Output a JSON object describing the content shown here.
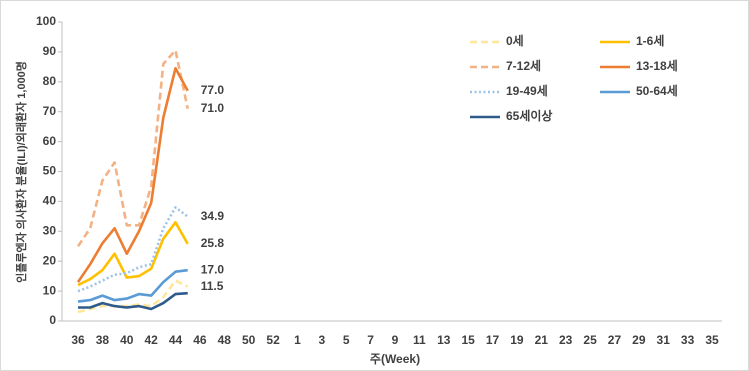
{
  "chart_data": {
    "type": "line",
    "y_axis_label": "인플루엔자 의사환자 분율(ILI)/외래환자 1,000명",
    "x_axis_label": "주(Week)",
    "categories": [
      "36",
      null,
      "38",
      null,
      "40",
      null,
      "42",
      null,
      "44",
      null,
      "46",
      null,
      "48",
      null,
      "50",
      null,
      "52",
      null,
      "1",
      null,
      "3",
      null,
      "5",
      null,
      "7",
      null,
      "9",
      null,
      "11",
      null,
      "13",
      null,
      "15",
      null,
      "17",
      null,
      "19",
      null,
      "21",
      null,
      "23",
      null,
      "25",
      null,
      "27",
      null,
      "29",
      null,
      "31",
      null,
      "33",
      null,
      "35"
    ],
    "ylim": [
      0,
      100
    ],
    "yticks": [
      0,
      10,
      20,
      30,
      40,
      50,
      60,
      70,
      80,
      90,
      100
    ],
    "legend": "upper right",
    "series": [
      {
        "name": "0세",
        "color": "#ffe699",
        "dash": "dashed",
        "values": [
          3,
          4,
          5,
          5,
          5,
          5.5,
          5,
          8,
          13.5,
          11.5,
          null,
          null,
          null,
          null,
          null,
          null,
          null,
          null,
          null,
          null,
          null,
          null,
          null,
          null,
          null,
          null,
          null,
          null,
          null,
          null,
          null,
          null,
          null,
          null,
          null,
          null,
          null,
          null,
          null,
          null,
          null,
          null,
          null,
          null,
          null,
          null,
          null,
          null,
          null,
          null,
          null,
          null,
          null
        ],
        "value_labels": [
          null,
          null,
          null,
          null,
          null,
          null,
          null,
          null,
          null,
          "11.5",
          null,
          null,
          null,
          null,
          null,
          null,
          null,
          null,
          null,
          null,
          null,
          null,
          null,
          null,
          null,
          null,
          null,
          null,
          null,
          null,
          null,
          null,
          null,
          null,
          null,
          null,
          null,
          null,
          null,
          null,
          null,
          null,
          null,
          null,
          null,
          null,
          null,
          null,
          null,
          null,
          null,
          null,
          null
        ]
      },
      {
        "name": "1-6세",
        "color": "#ffc000",
        "dash": "solid",
        "values": [
          12,
          14,
          17,
          22.5,
          14.5,
          15,
          17.5,
          27.5,
          33,
          25.8,
          null,
          null,
          null,
          null,
          null,
          null,
          null,
          null,
          null,
          null,
          null,
          null,
          null,
          null,
          null,
          null,
          null,
          null,
          null,
          null,
          null,
          null,
          null,
          null,
          null,
          null,
          null,
          null,
          null,
          null,
          null,
          null,
          null,
          null,
          null,
          null,
          null,
          null,
          null,
          null,
          null,
          null,
          null
        ],
        "value_labels": [
          null,
          null,
          null,
          null,
          null,
          null,
          null,
          null,
          null,
          "25.8",
          null,
          null,
          null,
          null,
          null,
          null,
          null,
          null,
          null,
          null,
          null,
          null,
          null,
          null,
          null,
          null,
          null,
          null,
          null,
          null,
          null,
          null,
          null,
          null,
          null,
          null,
          null,
          null,
          null,
          null,
          null,
          null,
          null,
          null,
          null,
          null,
          null,
          null,
          null,
          null,
          null,
          null,
          null
        ]
      },
      {
        "name": "7-12세",
        "color": "#f4b183",
        "dash": "dashed",
        "values": [
          25,
          31,
          47,
          53,
          32,
          32,
          45,
          86,
          90.5,
          71,
          null,
          null,
          null,
          null,
          null,
          null,
          null,
          null,
          null,
          null,
          null,
          null,
          null,
          null,
          null,
          null,
          null,
          null,
          null,
          null,
          null,
          null,
          null,
          null,
          null,
          null,
          null,
          null,
          null,
          null,
          null,
          null,
          null,
          null,
          null,
          null,
          null,
          null,
          null,
          null,
          null,
          null,
          null
        ],
        "value_labels": [
          null,
          null,
          null,
          null,
          null,
          null,
          null,
          null,
          null,
          "71.0",
          null,
          null,
          null,
          null,
          null,
          null,
          null,
          null,
          null,
          null,
          null,
          null,
          null,
          null,
          null,
          null,
          null,
          null,
          null,
          null,
          null,
          null,
          null,
          null,
          null,
          null,
          null,
          null,
          null,
          null,
          null,
          null,
          null,
          null,
          null,
          null,
          null,
          null,
          null,
          null,
          null,
          null,
          null
        ]
      },
      {
        "name": "13-18세",
        "color": "#ed7d31",
        "dash": "solid",
        "values": [
          13,
          19,
          26,
          31,
          22.5,
          30,
          39.5,
          68,
          84.5,
          77,
          null,
          null,
          null,
          null,
          null,
          null,
          null,
          null,
          null,
          null,
          null,
          null,
          null,
          null,
          null,
          null,
          null,
          null,
          null,
          null,
          null,
          null,
          null,
          null,
          null,
          null,
          null,
          null,
          null,
          null,
          null,
          null,
          null,
          null,
          null,
          null,
          null,
          null,
          null,
          null,
          null,
          null,
          null
        ],
        "value_labels": [
          null,
          null,
          null,
          null,
          null,
          null,
          null,
          null,
          null,
          "77.0",
          null,
          null,
          null,
          null,
          null,
          null,
          null,
          null,
          null,
          null,
          null,
          null,
          null,
          null,
          null,
          null,
          null,
          null,
          null,
          null,
          null,
          null,
          null,
          null,
          null,
          null,
          null,
          null,
          null,
          null,
          null,
          null,
          null,
          null,
          null,
          null,
          null,
          null,
          null,
          null,
          null,
          null,
          null
        ]
      },
      {
        "name": "19-49세",
        "color": "#9dc3e6",
        "dash": "dotted",
        "values": [
          10,
          11.5,
          13.5,
          15.5,
          16,
          18,
          19,
          31,
          38,
          34.9,
          null,
          null,
          null,
          null,
          null,
          null,
          null,
          null,
          null,
          null,
          null,
          null,
          null,
          null,
          null,
          null,
          null,
          null,
          null,
          null,
          null,
          null,
          null,
          null,
          null,
          null,
          null,
          null,
          null,
          null,
          null,
          null,
          null,
          null,
          null,
          null,
          null,
          null,
          null,
          null,
          null,
          null,
          null
        ],
        "value_labels": [
          null,
          null,
          null,
          null,
          null,
          null,
          null,
          null,
          null,
          "34.9",
          null,
          null,
          null,
          null,
          null,
          null,
          null,
          null,
          null,
          null,
          null,
          null,
          null,
          null,
          null,
          null,
          null,
          null,
          null,
          null,
          null,
          null,
          null,
          null,
          null,
          null,
          null,
          null,
          null,
          null,
          null,
          null,
          null,
          null,
          null,
          null,
          null,
          null,
          null,
          null,
          null,
          null,
          null
        ]
      },
      {
        "name": "50-64세",
        "color": "#5b9bd5",
        "dash": "solid",
        "values": [
          6.5,
          7,
          8.5,
          7,
          7.5,
          9,
          8.5,
          13,
          16.5,
          17,
          null,
          null,
          null,
          null,
          null,
          null,
          null,
          null,
          null,
          null,
          null,
          null,
          null,
          null,
          null,
          null,
          null,
          null,
          null,
          null,
          null,
          null,
          null,
          null,
          null,
          null,
          null,
          null,
          null,
          null,
          null,
          null,
          null,
          null,
          null,
          null,
          null,
          null,
          null,
          null,
          null,
          null,
          null
        ],
        "value_labels": [
          null,
          null,
          null,
          null,
          null,
          null,
          null,
          null,
          null,
          "17.0",
          null,
          null,
          null,
          null,
          null,
          null,
          null,
          null,
          null,
          null,
          null,
          null,
          null,
          null,
          null,
          null,
          null,
          null,
          null,
          null,
          null,
          null,
          null,
          null,
          null,
          null,
          null,
          null,
          null,
          null,
          null,
          null,
          null,
          null,
          null,
          null,
          null,
          null,
          null,
          null,
          null,
          null,
          null
        ]
      },
      {
        "name": "65세이상",
        "color": "#2f5b8a",
        "dash": "solid",
        "values": [
          4.5,
          4.5,
          6,
          5,
          4.5,
          5,
          4,
          6,
          9,
          9.3,
          null,
          null,
          null,
          null,
          null,
          null,
          null,
          null,
          null,
          null,
          null,
          null,
          null,
          null,
          null,
          null,
          null,
          null,
          null,
          null,
          null,
          null,
          null,
          null,
          null,
          null,
          null,
          null,
          null,
          null,
          null,
          null,
          null,
          null,
          null,
          null,
          null,
          null,
          null,
          null,
          null,
          null,
          null
        ]
      }
    ]
  }
}
